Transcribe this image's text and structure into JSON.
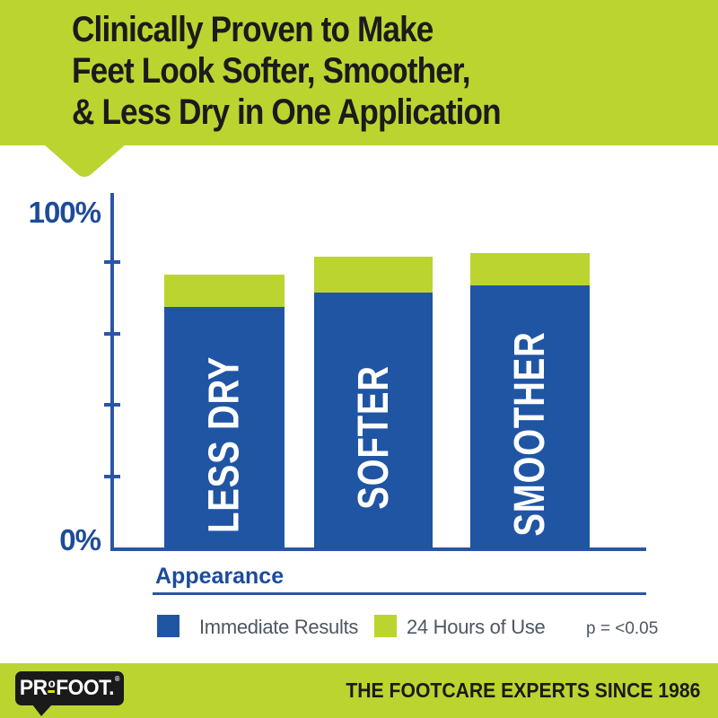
{
  "colors": {
    "brand_green": "#bcd430",
    "bar_blue": "#2055a4",
    "axis_blue": "#2b55a4",
    "label_blue": "#1d4b9a",
    "legend_text": "#4d5761",
    "logo_black": "#1a1a1a",
    "logo_underline_yellow": "#d9e021",
    "bar_label_white": "#ffffff",
    "header_text_black": "#1b1b1b"
  },
  "header": {
    "lines": [
      "Clinically Proven to Make",
      "Feet Look Softer, Smoother,",
      "& Less Dry in One Application"
    ]
  },
  "chart_data": {
    "type": "bar",
    "categories": [
      "LESS DRY",
      "SOFTER",
      "SMOOTHER"
    ],
    "series": [
      {
        "name": "Immediate Results",
        "color": "#2055a4",
        "values": [
          68,
          72,
          74
        ]
      },
      {
        "name": "24 Hours of Use",
        "color": "#bcd430",
        "values": [
          77,
          82,
          83
        ]
      }
    ],
    "title": "Clinically Proven to Make Feet Look Softer, Smoother, & Less Dry in One Application",
    "xlabel": "Appearance",
    "ylabel": "",
    "ylabel_top": "100%",
    "ylabel_bottom": "0%",
    "ylim": [
      0,
      100
    ],
    "yticks": [
      20,
      40,
      60,
      80
    ],
    "grid": false,
    "legend_position": "bottom",
    "annotation": "p = <0.05",
    "note": "24 Hours of Use values are totals; green segment is drawn above the blue Immediate Results segment"
  },
  "footer": {
    "logo": {
      "part1": "PR",
      "sup": "o",
      "part2": "FOOT.",
      "reg": "®"
    },
    "tagline": "THE FOOTCARE EXPERTS SINCE 1986"
  }
}
